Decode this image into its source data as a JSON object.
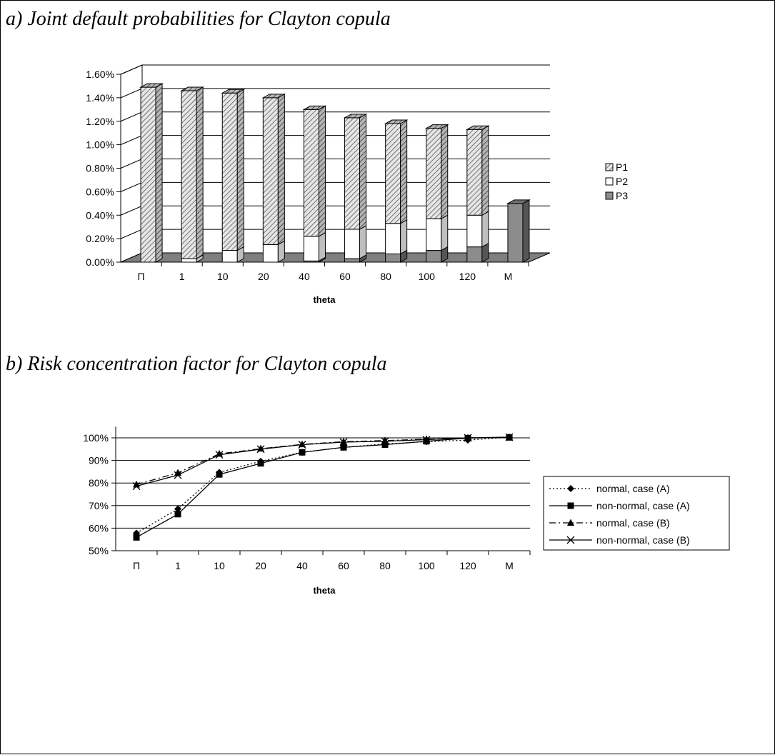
{
  "panels": [
    {
      "title": "a) Joint default probabilities for Clayton copula"
    },
    {
      "title": "b) Risk concentration factor for Clayton copula"
    }
  ],
  "chart_data": [
    {
      "type": "bar",
      "stacked": true,
      "three_d": true,
      "title": "a) Joint default probabilities for Clayton copula",
      "xlabel": "theta",
      "ylabel": "",
      "categories": [
        "Π",
        "1",
        "10",
        "20",
        "40",
        "60",
        "80",
        "100",
        "120",
        "M"
      ],
      "y_ticks": [
        "0.00%",
        "0.20%",
        "0.40%",
        "0.60%",
        "0.80%",
        "1.00%",
        "1.20%",
        "1.40%",
        "1.60%"
      ],
      "ylim": [
        0,
        1.6
      ],
      "grid": true,
      "legend": "right",
      "series": [
        {
          "name": "P3",
          "color": "#8c8c8c",
          "pattern": "solid",
          "values": [
            0,
            0,
            0,
            0,
            0.01,
            0.03,
            0.07,
            0.1,
            0.13,
            0.5
          ]
        },
        {
          "name": "P2",
          "color": "#ffffff",
          "pattern": "solid",
          "values": [
            0,
            0.03,
            0.1,
            0.15,
            0.21,
            0.25,
            0.26,
            0.27,
            0.27,
            0
          ]
        },
        {
          "name": "P1",
          "color": "#d0d0d0",
          "pattern": "hatch",
          "values": [
            1.49,
            1.43,
            1.34,
            1.25,
            1.08,
            0.95,
            0.85,
            0.77,
            0.73,
            0
          ]
        }
      ],
      "legend_order": [
        "P1",
        "P2",
        "P3"
      ]
    },
    {
      "type": "line",
      "title": "b) Risk concentration factor for Clayton copula",
      "xlabel": "theta",
      "ylabel": "",
      "categories": [
        "Π",
        "1",
        "10",
        "20",
        "40",
        "60",
        "80",
        "100",
        "120",
        "M"
      ],
      "y_ticks": [
        "50%",
        "60%",
        "70%",
        "80%",
        "90%",
        "100%"
      ],
      "ylim": [
        50,
        105
      ],
      "grid": true,
      "legend": "right",
      "series": [
        {
          "name": "normal, case (A)",
          "marker": "diamond",
          "dash": "dotted",
          "values": [
            57.8,
            68.5,
            84.7,
            89.6,
            93.6,
            95.8,
            97.3,
            98.3,
            99.0,
            100.3
          ]
        },
        {
          "name": "non-normal, case (A)",
          "marker": "square",
          "dash": "solid",
          "values": [
            55.9,
            66.2,
            83.8,
            88.7,
            93.6,
            95.8,
            97.0,
            98.5,
            99.9,
            100.2
          ]
        },
        {
          "name": "normal, case (B)",
          "marker": "triangle",
          "dash": "dashdot",
          "values": [
            79.3,
            84.5,
            92.9,
            95.2,
            97.1,
            98.3,
            98.8,
            99.4,
            100.0,
            100.3
          ]
        },
        {
          "name": "non-normal, case (B)",
          "marker": "x",
          "dash": "solid",
          "values": [
            78.6,
            83.5,
            92.5,
            95.0,
            97.0,
            98.1,
            98.5,
            99.2,
            100.0,
            100.3
          ]
        }
      ]
    }
  ]
}
